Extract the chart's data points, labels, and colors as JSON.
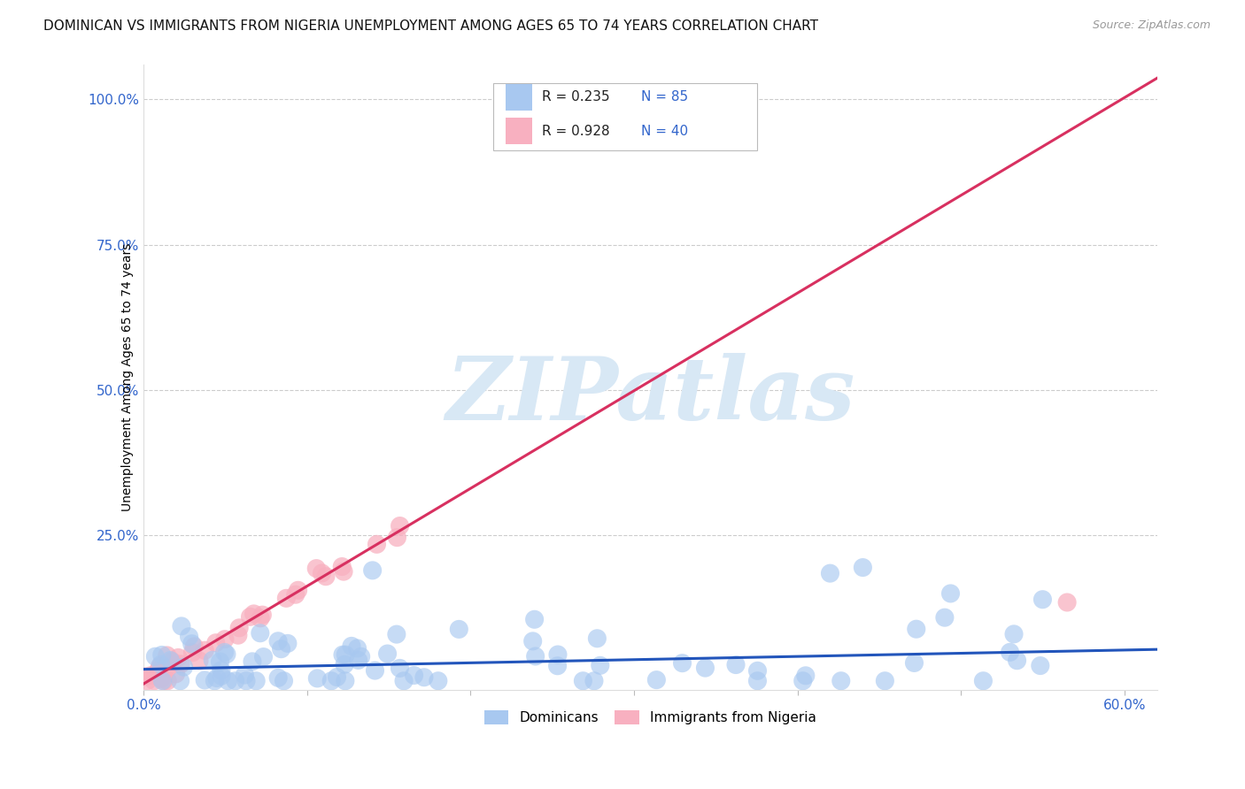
{
  "title": "DOMINICAN VS IMMIGRANTS FROM NIGERIA UNEMPLOYMENT AMONG AGES 65 TO 74 YEARS CORRELATION CHART",
  "source": "Source: ZipAtlas.com",
  "ylabel": "Unemployment Among Ages 65 to 74 years",
  "xlim": [
    0.0,
    0.62
  ],
  "ylim": [
    -0.015,
    1.06
  ],
  "ytick_positions": [
    0.0,
    0.25,
    0.5,
    0.75,
    1.0
  ],
  "ytick_labels": [
    "",
    "25.0%",
    "50.0%",
    "75.0%",
    "100.0%"
  ],
  "xtick_positions": [
    0.0,
    0.1,
    0.2,
    0.3,
    0.4,
    0.5,
    0.6
  ],
  "xtick_labels": [
    "0.0%",
    "",
    "",
    "",
    "",
    "",
    "60.0%"
  ],
  "dominican_color": "#A8C8F0",
  "nigeria_color": "#F8B0C0",
  "trendline_dominican_color": "#2255BB",
  "trendline_nigeria_color": "#D83060",
  "r_text_color": "#222222",
  "n_text_color": "#3366CC",
  "tick_color": "#3366CC",
  "watermark_color": "#D8E8F5",
  "grid_color": "#CCCCCC",
  "background_color": "#FFFFFF",
  "title_color": "#111111",
  "source_color": "#999999",
  "title_fontsize": 11,
  "source_fontsize": 9,
  "axis_label_fontsize": 10,
  "tick_fontsize": 11,
  "dom_trend_intercept": 0.02,
  "dom_trend_slope": 0.055,
  "nig_trend_intercept": -0.005,
  "nig_trend_slope": 1.68,
  "label_dominican": "Dominicans",
  "label_nigeria": "Immigrants from Nigeria",
  "r_dominican": "R = 0.235",
  "n_dominican": "N = 85",
  "r_nigeria": "R = 0.928",
  "n_nigeria": "N = 40",
  "watermark": "ZIPatlas"
}
